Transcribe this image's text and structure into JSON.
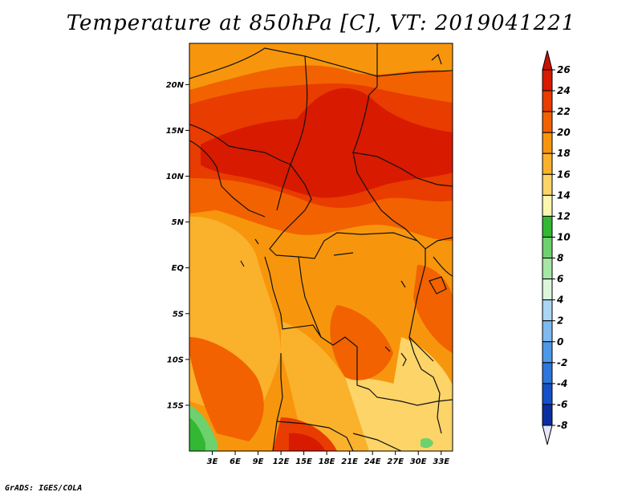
{
  "title": "Temperature at 850hPa [C], VT: 2019041221",
  "credit": "GrADS: IGES/COLA",
  "map": {
    "region": "Central Africa",
    "lon_range": [
      0,
      34.5
    ],
    "lat_range": [
      -20,
      24.5
    ],
    "lat_ticks": [
      {
        "value": 20,
        "label": "20N"
      },
      {
        "value": 15,
        "label": "15N"
      },
      {
        "value": 10,
        "label": "10N"
      },
      {
        "value": 5,
        "label": "5N"
      },
      {
        "value": 0,
        "label": "EQ"
      },
      {
        "value": -5,
        "label": "5S"
      },
      {
        "value": -10,
        "label": "10S"
      },
      {
        "value": -15,
        "label": "15S"
      }
    ],
    "lon_ticks": [
      {
        "value": 3,
        "label": "3E"
      },
      {
        "value": 6,
        "label": "6E"
      },
      {
        "value": 9,
        "label": "9E"
      },
      {
        "value": 12,
        "label": "12E"
      },
      {
        "value": 15,
        "label": "15E"
      },
      {
        "value": 18,
        "label": "18E"
      },
      {
        "value": 21,
        "label": "21E"
      },
      {
        "value": 24,
        "label": "24E"
      },
      {
        "value": 27,
        "label": "27E"
      },
      {
        "value": 30,
        "label": "30E"
      },
      {
        "value": 33,
        "label": "33E"
      }
    ]
  },
  "colorbar": {
    "levels": [
      26,
      24,
      22,
      20,
      18,
      16,
      14,
      12,
      10,
      8,
      6,
      4,
      2,
      0,
      -2,
      -4,
      -6,
      -8
    ],
    "labels": [
      "26",
      "24",
      "22",
      "20",
      "18",
      "16",
      "14",
      "12",
      "10",
      "8",
      "6",
      "4",
      "2",
      "0",
      "-2",
      "-4",
      "-6",
      "-8"
    ],
    "colors": [
      "#d81a00",
      "#e83c00",
      "#f26200",
      "#f7960c",
      "#fab12c",
      "#fcd468",
      "#fef6b0",
      "#32b832",
      "#6dd16d",
      "#a6e6a6",
      "#dcf6dc",
      "#aad6f4",
      "#7cbaf0",
      "#4e98e8",
      "#2c76dc",
      "#1450c8",
      "#0a2ea0",
      "#060a78"
    ],
    "top_arrow_color": "#c81200",
    "bottom_arrow_color": "#e6e6fa"
  }
}
